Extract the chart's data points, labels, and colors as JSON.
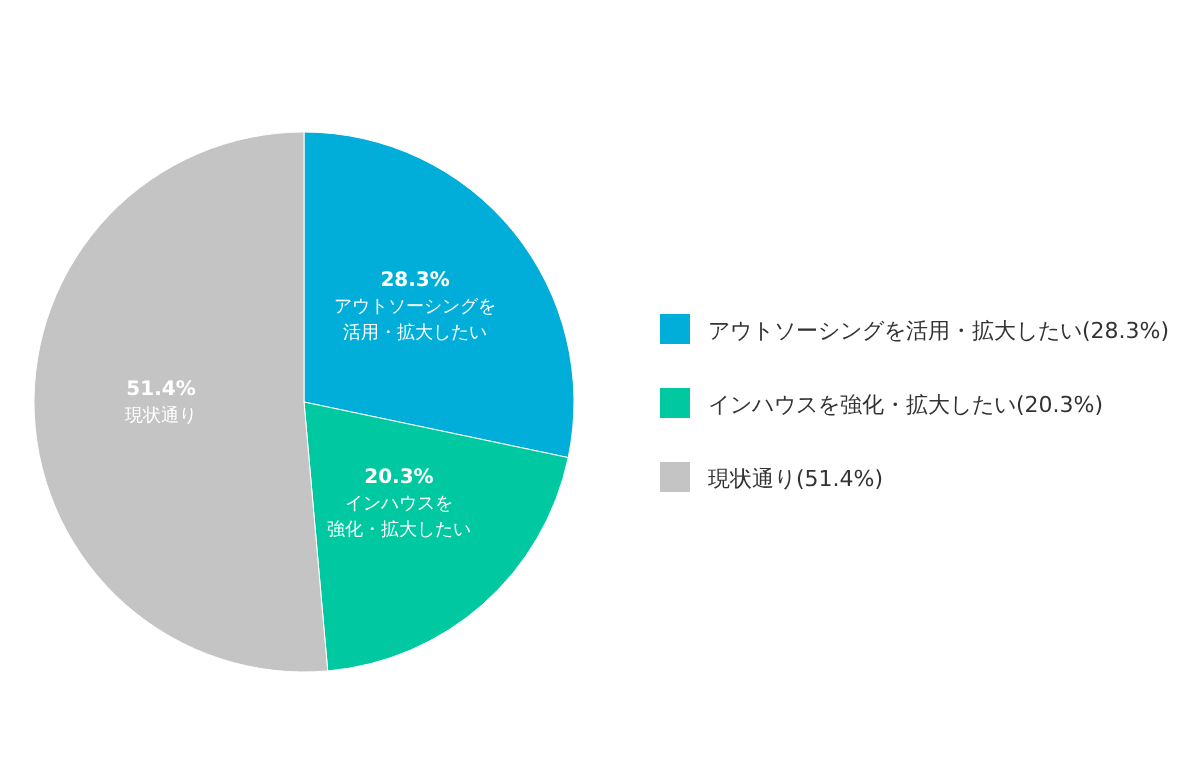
{
  "chart_data": {
    "type": "pie",
    "categories": [
      "アウトソーシングを活用・拡大したい(28.3%)",
      "インハウスを強化・拡大したい(20.3%)",
      "現状通り(51.4%)"
    ],
    "values": [
      28.3,
      20.3,
      51.4
    ],
    "colors": [
      "#00aed9",
      "#00c8a0",
      "#c4c4c4"
    ],
    "value_labels": [
      "28.3%\nアウトソーシングを活用・拡大したい",
      "20.3%\nインハウスを強化・拡大したい",
      "51.4%\n現状通り"
    ],
    "legend": "right"
  }
}
